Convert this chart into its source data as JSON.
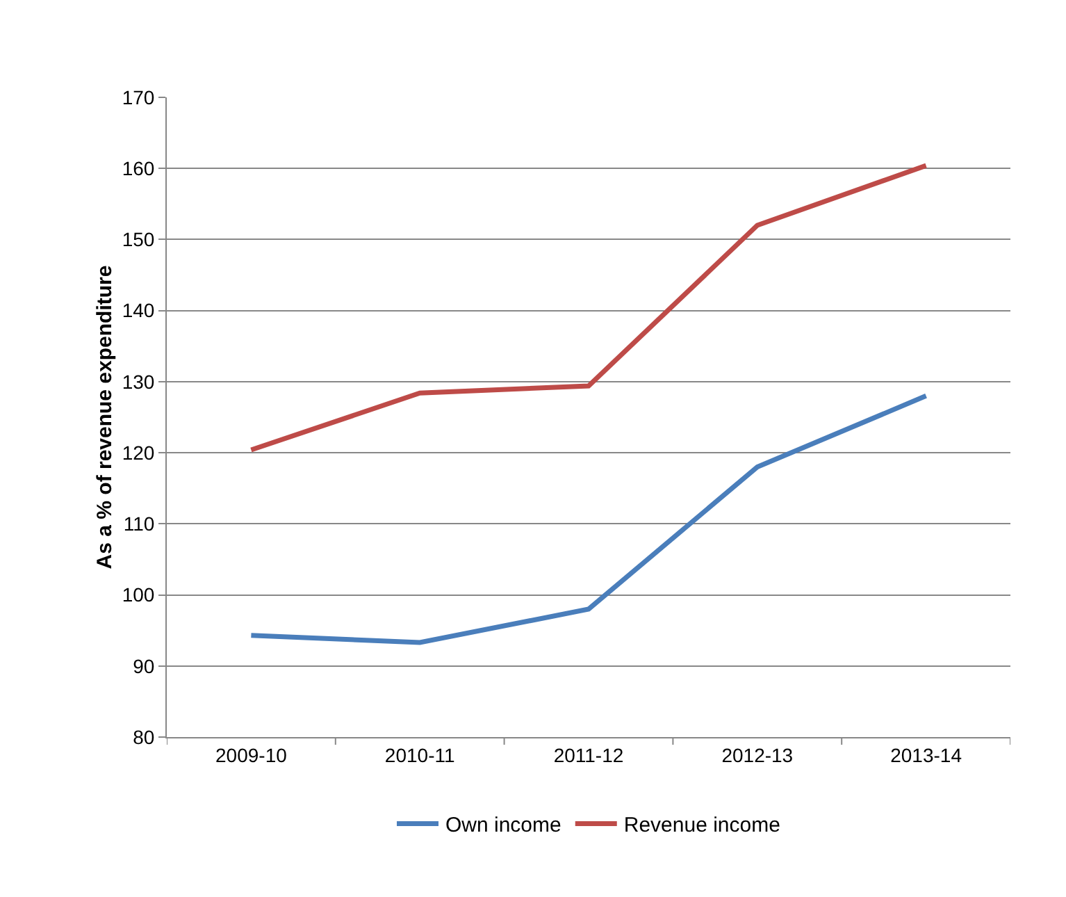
{
  "chart_data": {
    "type": "line",
    "ylabel": "As a % of revenue expenditure",
    "categories": [
      "2009-10",
      "2010-11",
      "2011-12",
      "2012-13",
      "2013-14"
    ],
    "series": [
      {
        "name": "Own income",
        "color": "#4a7ebb",
        "values": [
          94.3,
          93.3,
          98,
          118,
          128
        ]
      },
      {
        "name": "Revenue income",
        "color": "#be4b48",
        "values": [
          120.4,
          128.4,
          129.4,
          152,
          160.4
        ]
      }
    ],
    "ylim": [
      80,
      170
    ],
    "yticks": [
      80,
      90,
      100,
      110,
      120,
      130,
      140,
      150,
      160,
      170
    ],
    "grid": "y",
    "legend": "bottom",
    "marker": "none",
    "line_style": "solid"
  }
}
